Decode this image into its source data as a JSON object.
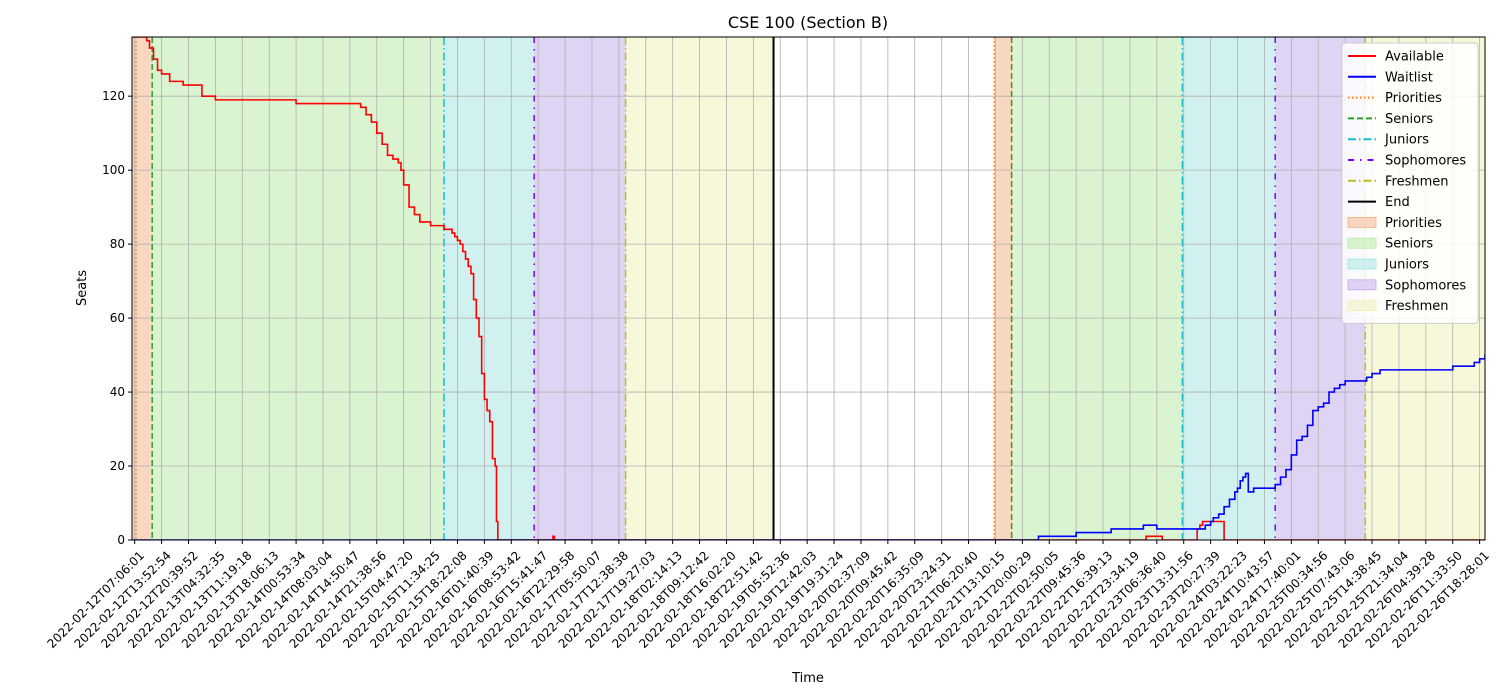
{
  "chart_data": {
    "type": "line",
    "title": "CSE 100 (Section B)",
    "xlabel": "Time",
    "ylabel": "Seats",
    "ylim": [
      0,
      136
    ],
    "yticks": [
      0,
      20,
      40,
      60,
      80,
      100,
      120
    ],
    "grid": true,
    "legend_position": "top-right",
    "x_tick_labels": [
      "2022-02-12T07:06:01",
      "2022-02-12T13:52:54",
      "2022-02-12T20:39:52",
      "2022-02-13T04:32:35",
      "2022-02-13T11:19:18",
      "2022-02-13T18:06:13",
      "2022-02-14T00:53:34",
      "2022-02-14T08:03:04",
      "2022-02-14T14:50:47",
      "2022-02-14T21:38:56",
      "2022-02-15T04:47:20",
      "2022-02-15T11:34:25",
      "2022-02-15T18:22:08",
      "2022-02-16T01:40:39",
      "2022-02-16T08:53:42",
      "2022-02-16T15:41:47",
      "2022-02-16T22:29:58",
      "2022-02-17T05:50:07",
      "2022-02-17T12:38:38",
      "2022-02-17T19:27:03",
      "2022-02-18T02:14:13",
      "2022-02-18T09:12:42",
      "2022-02-18T16:02:20",
      "2022-02-18T22:51:42",
      "2022-02-19T05:52:36",
      "2022-02-19T12:42:03",
      "2022-02-19T19:31:24",
      "2022-02-20T02:37:09",
      "2022-02-20T09:45:42",
      "2022-02-20T16:35:09",
      "2022-02-20T23:24:31",
      "2022-02-21T06:20:40",
      "2022-02-21T13:10:15",
      "2022-02-21T20:00:29",
      "2022-02-22T02:50:05",
      "2022-02-22T09:45:36",
      "2022-02-22T16:39:13",
      "2022-02-22T23:34:19",
      "2022-02-23T06:36:40",
      "2022-02-23T13:31:56",
      "2022-02-23T20:27:39",
      "2022-02-24T03:22:23",
      "2022-02-24T10:43:57",
      "2022-02-24T17:40:01",
      "2022-02-25T00:34:56",
      "2022-02-25T07:43:06",
      "2022-02-25T14:38:45",
      "2022-02-25T21:34:04",
      "2022-02-26T04:39:28",
      "2022-02-26T11:33:50",
      "2022-02-26T18:28:01"
    ],
    "phases": [
      {
        "name": "Priorities",
        "start": -0.1,
        "end": 0.6,
        "color": "#f4b183"
      },
      {
        "name": "Seniors",
        "start": 0.6,
        "end": 11.5,
        "color": "#b6eaa4"
      },
      {
        "name": "Juniors",
        "start": 11.5,
        "end": 14.85,
        "color": "#a3e4e4"
      },
      {
        "name": "Sophomores",
        "start": 14.85,
        "end": 18.25,
        "color": "#c2a9ea"
      },
      {
        "name": "Freshmen",
        "start": 18.25,
        "end": 23.75,
        "color": "#f0f0b6"
      },
      {
        "name": "Priorities",
        "start": 31.95,
        "end": 32.65,
        "color": "#f4b183"
      },
      {
        "name": "Seniors",
        "start": 32.65,
        "end": 38.95,
        "color": "#b6eaa4"
      },
      {
        "name": "Juniors",
        "start": 38.95,
        "end": 42.4,
        "color": "#a3e4e4"
      },
      {
        "name": "Sophomores",
        "start": 42.4,
        "end": 45.75,
        "color": "#c2a9ea"
      },
      {
        "name": "Freshmen",
        "start": 45.75,
        "end": 51.2,
        "color": "#f0f0b6"
      }
    ],
    "phase_lines": [
      {
        "x": 0.05,
        "style": "priorities"
      },
      {
        "x": 0.65,
        "style": "seniors"
      },
      {
        "x": 11.5,
        "style": "juniors"
      },
      {
        "x": 14.85,
        "style": "sophomores"
      },
      {
        "x": 18.25,
        "style": "freshmen"
      },
      {
        "x": 23.75,
        "style": "end"
      },
      {
        "x": 31.95,
        "style": "priorities"
      },
      {
        "x": 32.6,
        "style": "seniors"
      },
      {
        "x": 38.95,
        "style": "juniors"
      },
      {
        "x": 42.4,
        "style": "sophomores"
      },
      {
        "x": 45.75,
        "style": "freshmen"
      },
      {
        "x": 51.2,
        "style": "end"
      }
    ],
    "series": [
      {
        "name": "Available",
        "color": "#ff0000",
        "x": [
          -0.1,
          0.3,
          0.45,
          0.55,
          0.7,
          0.85,
          1.0,
          1.3,
          1.6,
          1.8,
          2.0,
          2.5,
          3.0,
          4.0,
          5.0,
          5.5,
          6.0,
          7.0,
          8.0,
          8.4,
          8.6,
          8.8,
          9.0,
          9.2,
          9.4,
          9.6,
          9.8,
          9.9,
          10.0,
          10.2,
          10.4,
          10.6,
          10.8,
          11.0,
          11.2,
          11.5,
          11.6,
          11.7,
          11.8,
          11.9,
          12.0,
          12.1,
          12.2,
          12.3,
          12.4,
          12.5,
          12.6,
          12.7,
          12.8,
          12.9,
          13.0,
          13.1,
          13.2,
          13.3,
          13.4,
          13.45,
          13.5,
          13.55,
          14.0,
          15.5,
          15.55,
          15.6,
          16.0,
          18.0,
          23.75,
          35.0,
          37.5,
          37.6,
          38.1,
          38.2,
          38.9,
          39.0,
          39.4,
          39.5,
          39.6,
          39.7,
          39.8,
          40.4,
          40.5,
          51.2
        ],
        "y": [
          136,
          136,
          135,
          133,
          130,
          127,
          126,
          124,
          124,
          123,
          123,
          120,
          119,
          119,
          119,
          119,
          118,
          118,
          118,
          117,
          115,
          113,
          110,
          107,
          104,
          103,
          102,
          100,
          96,
          90,
          88,
          86,
          86,
          85,
          85,
          84,
          84,
          84,
          83,
          82,
          81,
          80,
          78,
          76,
          74,
          72,
          65,
          60,
          55,
          45,
          38,
          35,
          32,
          22,
          20,
          5,
          0,
          0,
          0,
          0,
          1,
          0,
          0,
          0,
          0,
          0,
          0,
          1,
          1,
          0,
          0,
          0,
          0,
          3,
          4,
          5,
          5,
          5,
          0,
          0
        ]
      },
      {
        "name": "Waitlist",
        "color": "#0000ff",
        "x": [
          -0.1,
          33.2,
          33.6,
          35.0,
          36.3,
          36.5,
          37.5,
          38.0,
          39.5,
          39.8,
          40.0,
          40.1,
          40.3,
          40.5,
          40.7,
          40.9,
          41.0,
          41.1,
          41.2,
          41.3,
          41.4,
          41.6,
          42.0,
          42.3,
          42.4,
          42.6,
          42.8,
          43.0,
          43.2,
          43.4,
          43.6,
          43.8,
          44.0,
          44.2,
          44.4,
          44.6,
          44.8,
          45.0,
          45.5,
          45.75,
          45.8,
          46.0,
          46.3,
          47.0,
          47.8,
          49.0,
          49.4,
          49.8,
          50.0,
          50.2,
          51.2
        ],
        "y": [
          0,
          0,
          1,
          2,
          3,
          3,
          4,
          3,
          3,
          4,
          5,
          6,
          7,
          9,
          11,
          13,
          14,
          16,
          17,
          18,
          13,
          14,
          14,
          14,
          15,
          17,
          19,
          23,
          27,
          28,
          31,
          35,
          36,
          37,
          40,
          41,
          42,
          43,
          43,
          43,
          44,
          45,
          46,
          46,
          46,
          47,
          47,
          48,
          49,
          50,
          50
        ]
      }
    ],
    "legend": [
      {
        "label": "Available",
        "kind": "line",
        "color": "#ff0000",
        "dash": "none"
      },
      {
        "label": "Waitlist",
        "kind": "line",
        "color": "#0000ff",
        "dash": "none"
      },
      {
        "label": "Priorities",
        "kind": "line",
        "color": "#ff7f0e",
        "dash": "dotted"
      },
      {
        "label": "Seniors",
        "kind": "line",
        "color": "#2ca02c",
        "dash": "dashed"
      },
      {
        "label": "Juniors",
        "kind": "line",
        "color": "#17becf",
        "dash": "dashdot"
      },
      {
        "label": "Sophomores",
        "kind": "line",
        "color": "#7f00ff",
        "dash": "loose"
      },
      {
        "label": "Freshmen",
        "kind": "line",
        "color": "#bcbd22",
        "dash": "dashdot"
      },
      {
        "label": "End",
        "kind": "line",
        "color": "#000000",
        "dash": "none"
      },
      {
        "label": "Priorities",
        "kind": "patch",
        "color": "#f4b183"
      },
      {
        "label": "Seniors",
        "kind": "patch",
        "color": "#b6eaa4"
      },
      {
        "label": "Juniors",
        "kind": "patch",
        "color": "#a3e4e4"
      },
      {
        "label": "Sophomores",
        "kind": "patch",
        "color": "#c2a9ea"
      },
      {
        "label": "Freshmen",
        "kind": "patch",
        "color": "#f0f0b6"
      }
    ]
  }
}
